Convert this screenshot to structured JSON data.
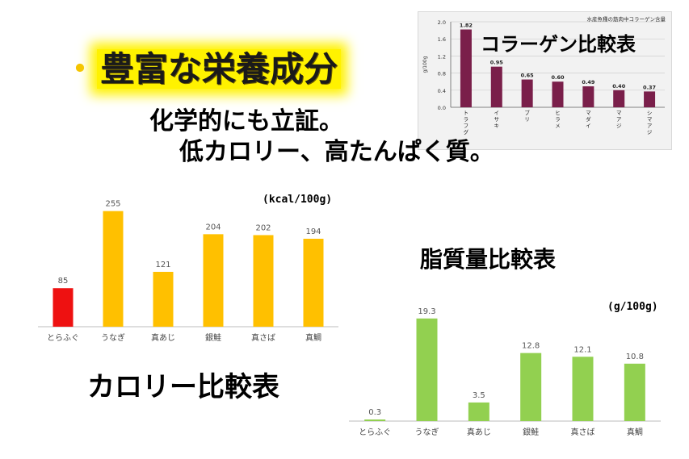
{
  "headline": {
    "bullet": "・",
    "text": "豊富な栄養成分"
  },
  "subtitle_lines": [
    "化学的にも立証。",
    "低カロリー、高たんぱく質。"
  ],
  "collagen": {
    "title": "コラーゲン比較表",
    "chart_data": {
      "type": "bar",
      "title": "水産魚種の筋肉中コラーゲン含量",
      "ylabel": "g/100g",
      "ylim": [
        0,
        2.0
      ],
      "yticks": [
        "0.0",
        "0.4",
        "0.8",
        "1.2",
        "1.6",
        "2.0"
      ],
      "categories": [
        "トラフグ",
        "イサキ",
        "ブリ",
        "ヒラメ",
        "マダイ",
        "マアジ",
        "シマアジ"
      ],
      "values": [
        1.82,
        0.95,
        0.65,
        0.6,
        0.49,
        0.4,
        0.37
      ],
      "value_labels": [
        "1.82",
        "0.95",
        "0.65",
        "0.60",
        "0.49",
        "0.40",
        "0.37"
      ],
      "color": "#7a1f4a",
      "grid": true
    }
  },
  "calorie": {
    "title": "カロリー比較表",
    "unit": "(kcal/100g)",
    "chart_data": {
      "type": "bar",
      "categories": [
        "とらふぐ",
        "うなぎ",
        "真あじ",
        "銀鮭",
        "真さば",
        "真鯛"
      ],
      "values": [
        85,
        255,
        121,
        204,
        202,
        194
      ],
      "value_labels": [
        "85",
        "255",
        "121",
        "204",
        "202",
        "194"
      ],
      "colors": [
        "#ee1111",
        "#ffc000",
        "#ffc000",
        "#ffc000",
        "#ffc000",
        "#ffc000"
      ],
      "ylim": [
        0,
        290
      ],
      "grid": false
    }
  },
  "fat": {
    "title": "脂質量比較表",
    "unit": "(g/100g)",
    "chart_data": {
      "type": "bar",
      "categories": [
        "とらふぐ",
        "うなぎ",
        "真あじ",
        "銀鮭",
        "真さば",
        "真鯛"
      ],
      "values": [
        0.3,
        19.3,
        3.5,
        12.8,
        12.1,
        10.8
      ],
      "value_labels": [
        "0.3",
        "19.3",
        "3.5",
        "12.8",
        "12.1",
        "10.8"
      ],
      "color": "#92d050",
      "ylim": [
        0,
        22
      ],
      "grid": false
    }
  }
}
